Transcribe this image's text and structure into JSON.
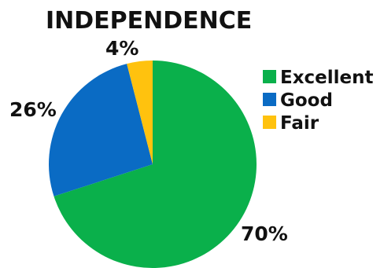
{
  "chart_data": {
    "type": "pie",
    "title": "INDEPENDENCE",
    "categories": [
      "Excellent",
      "Good",
      "Fair"
    ],
    "values": [
      70,
      26,
      4
    ],
    "labels": [
      "70%",
      "26%",
      "4%"
    ],
    "colors": [
      "#0ab04b",
      "#0a6bc4",
      "#ffc20e"
    ],
    "legend_position": "right"
  }
}
